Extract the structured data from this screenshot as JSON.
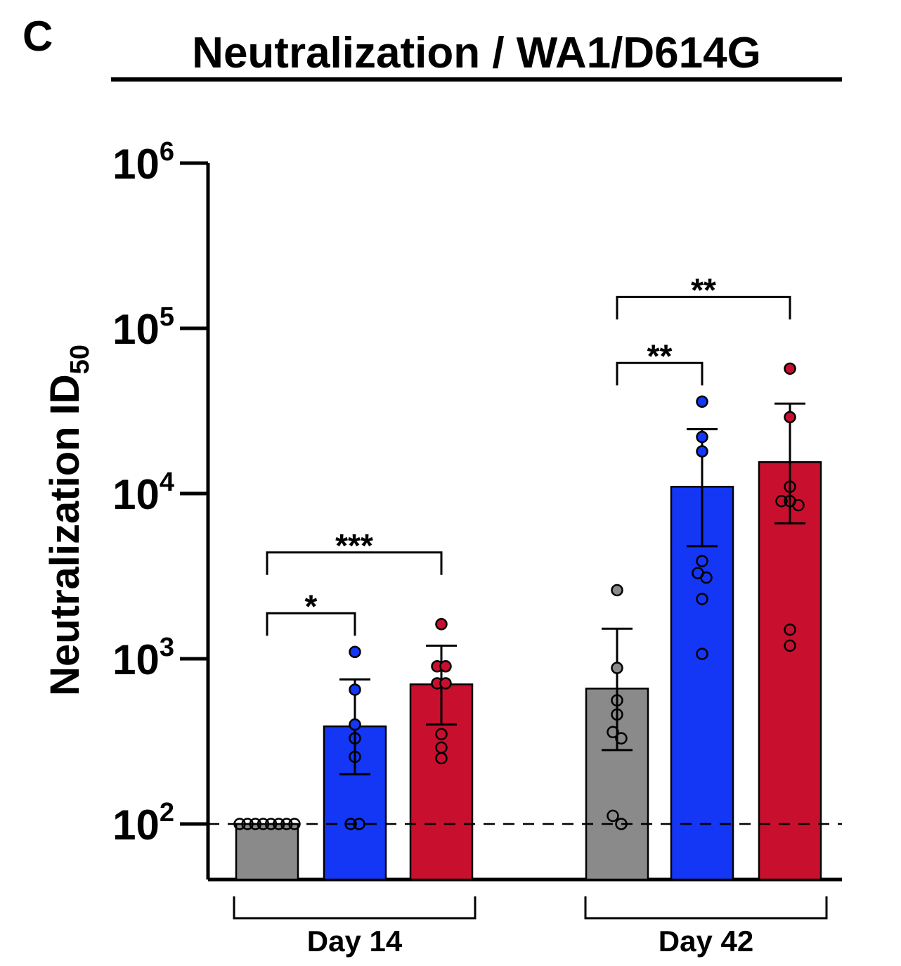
{
  "panel_label": "C",
  "chart_data": {
    "type": "bar",
    "title": "Neutralization / WA1/D614G",
    "ylabel": "Neutralization ID",
    "ylabel_sub": "50",
    "y_scale": "log",
    "ylim": [
      45,
      1000000
    ],
    "yticks": [
      {
        "value": 100,
        "base": "10",
        "exp": "2"
      },
      {
        "value": 1000,
        "base": "10",
        "exp": "3"
      },
      {
        "value": 10000,
        "base": "10",
        "exp": "4"
      },
      {
        "value": 100000,
        "base": "10",
        "exp": "5"
      },
      {
        "value": 1000000,
        "base": "10",
        "exp": "6"
      }
    ],
    "detection_limit": 100,
    "groups": [
      {
        "label": "Day 14",
        "bars": [
          {
            "color": "#8a8a8a",
            "value": 100,
            "err_low": null,
            "err_high": null,
            "points": [
              100,
              100,
              100,
              100,
              100,
              100,
              100,
              100
            ]
          },
          {
            "color": "#1436f5",
            "value": 390,
            "err_low": 200,
            "err_high": 750,
            "points": [
              1100,
              650,
              400,
              330,
              255,
              100,
              100
            ]
          },
          {
            "color": "#c8102e",
            "value": 700,
            "err_low": 400,
            "err_high": 1200,
            "points": [
              1620,
              900,
              900,
              710,
              710,
              350,
              290,
              250
            ]
          }
        ],
        "comparisons": [
          {
            "from": 0,
            "to": 1,
            "label": "*"
          },
          {
            "from": 0,
            "to": 2,
            "label": "***"
          }
        ]
      },
      {
        "label": "Day 42",
        "bars": [
          {
            "color": "#8a8a8a",
            "value": 660,
            "err_low": 280,
            "err_high": 1520,
            "points": [
              2600,
              880,
              560,
              460,
              360,
              330,
              112,
              100
            ]
          },
          {
            "color": "#1436f5",
            "value": 11000,
            "err_low": 4800,
            "err_high": 24500,
            "points": [
              36000,
              22000,
              18000,
              3900,
              3300,
              3100,
              2300,
              1070
            ]
          },
          {
            "color": "#c8102e",
            "value": 15500,
            "err_low": 6600,
            "err_high": 35000,
            "points": [
              57000,
              29000,
              11000,
              9000,
              9000,
              8500,
              1500,
              1200
            ]
          }
        ],
        "comparisons": [
          {
            "from": 0,
            "to": 1,
            "label": "**"
          },
          {
            "from": 0,
            "to": 2,
            "label": "**"
          }
        ]
      }
    ]
  }
}
